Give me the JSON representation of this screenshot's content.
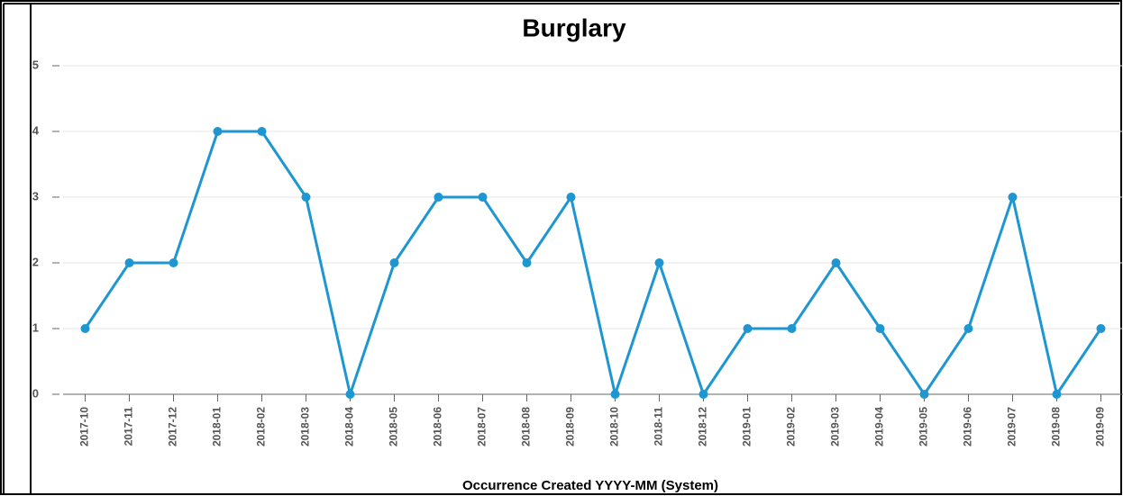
{
  "chart_data": {
    "type": "line",
    "title": "Burglary",
    "x_label": "Occurrence Created YYYY-MM (System)",
    "x": [
      "2017-10",
      "2017-11",
      "2017-12",
      "2018-01",
      "2018-02",
      "2018-03",
      "2018-04",
      "2018-05",
      "2018-06",
      "2018-07",
      "2018-08",
      "2018-09",
      "2018-10",
      "2018-11",
      "2018-12",
      "2019-01",
      "2019-02",
      "2019-03",
      "2019-04",
      "2019-05",
      "2019-06",
      "2019-07",
      "2019-08",
      "2019-09"
    ],
    "series": [
      {
        "name": "Burglary",
        "color": "#1e96d2",
        "values": [
          1,
          2,
          2,
          4,
          4,
          3,
          0,
          2,
          3,
          3,
          2,
          3,
          0,
          2,
          0,
          1,
          1,
          2,
          1,
          0,
          1,
          3,
          0,
          1
        ]
      }
    ],
    "ylim": [
      0,
      5
    ],
    "yticks": [
      0,
      1,
      2,
      3,
      4,
      5
    ],
    "grid": true
  }
}
